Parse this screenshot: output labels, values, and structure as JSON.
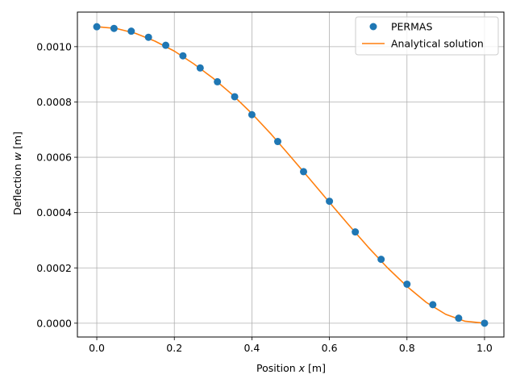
{
  "chart_data": {
    "type": "scatter",
    "xlabel": {
      "prefix": "Position ",
      "var": "x",
      "unit": " [m]"
    },
    "ylabel": {
      "prefix": "Deflection ",
      "var": "w",
      "unit": " [m]"
    },
    "xlim": [
      -0.05,
      1.05
    ],
    "ylim": [
      -5e-05,
      0.001125
    ],
    "xticks": [
      0.0,
      0.2,
      0.4,
      0.6,
      0.8,
      1.0
    ],
    "xtick_labels": [
      "0.0",
      "0.2",
      "0.4",
      "0.6",
      "0.8",
      "1.0"
    ],
    "yticks": [
      0.0,
      0.0002,
      0.0004,
      0.0006,
      0.0008,
      0.001
    ],
    "ytick_labels": [
      "0.0000",
      "0.0002",
      "0.0004",
      "0.0006",
      "0.0008",
      "0.0010"
    ],
    "grid": true,
    "legend_position": "top-right",
    "series": [
      {
        "name": "PERMAS",
        "kind": "scatter",
        "color": "#1f77b4",
        "x": [
          0.0,
          0.0444,
          0.0889,
          0.1333,
          0.1778,
          0.2222,
          0.2667,
          0.3111,
          0.3556,
          0.4,
          0.4667,
          0.5333,
          0.6,
          0.6667,
          0.7333,
          0.8,
          0.8667,
          0.9333,
          1.0
        ],
        "y": [
          0.001072,
          0.001066,
          0.001056,
          0.001034,
          0.001005,
          0.000967,
          0.000923,
          0.000873,
          0.000819,
          0.000754,
          0.000657,
          0.000548,
          0.000441,
          0.00033,
          0.000231,
          0.000141,
          6.7e-05,
          1.8e-05,
          0.0
        ]
      },
      {
        "name": "Analytical solution",
        "kind": "line",
        "color": "#ff7f0e",
        "x": [
          0.0,
          0.05,
          0.1,
          0.15,
          0.2,
          0.25,
          0.3,
          0.35,
          0.4,
          0.45,
          0.5,
          0.55,
          0.6,
          0.65,
          0.7,
          0.75,
          0.8,
          0.85,
          0.9,
          0.95,
          1.0
        ],
        "y": [
          0.001072,
          0.001066,
          0.001048,
          0.00102,
          0.000984,
          0.000938,
          0.000886,
          0.000826,
          0.000758,
          0.000683,
          0.000602,
          0.00052,
          0.000437,
          0.000355,
          0.000275,
          0.0002,
          0.000133,
          7.5e-05,
          3.2e-05,
          7e-06,
          0.0
        ]
      }
    ]
  }
}
